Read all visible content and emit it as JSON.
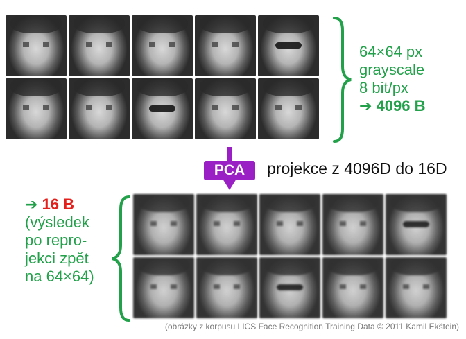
{
  "top_info": {
    "line1": "64×64 px",
    "line2": "grayscale",
    "line3": "8 bit/px",
    "arrow": "➔",
    "size": "4096 B"
  },
  "pca": {
    "label": "PCA",
    "description": "projekce z 4096D do 16D"
  },
  "bottom_info": {
    "arrow": "➔",
    "size": "16 B",
    "lines": [
      "(výsledek",
      "po repro-",
      "jekci zpět",
      "na 64×64)"
    ]
  },
  "caption": "(obrázky z korpusu LICS Face Recognition Training Data © 2011 Kamil Ekštein)",
  "colors": {
    "green": "#22a14a",
    "purple": "#9a1fc4",
    "red": "#e3201b"
  }
}
